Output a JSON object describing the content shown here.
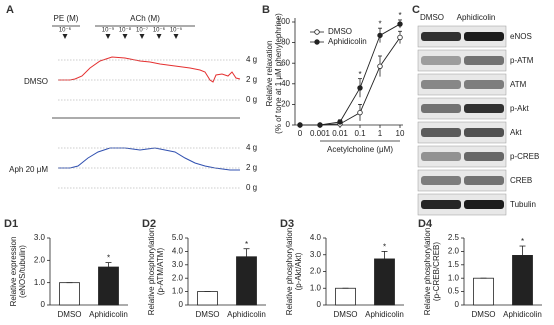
{
  "panel_a": {
    "label": "A",
    "pe_label": "PE (M)",
    "pe_doses": [
      "10⁻⁶"
    ],
    "ach_label": "ACh (M)",
    "ach_doses": [
      "10⁻⁹",
      "10⁻⁸",
      "10⁻⁷",
      "10⁻⁶",
      "10⁻⁵"
    ],
    "rows": [
      {
        "label": "DMSO",
        "scale": [
          "4 g",
          "2 g",
          "0 g"
        ]
      },
      {
        "label": "Aph 20 μM",
        "scale": [
          "4 g",
          "2 g",
          "0 g"
        ]
      }
    ]
  },
  "panel_c": {
    "label": "C",
    "columns": [
      "DMSO",
      "Aphidicolin"
    ],
    "rows": [
      "eNOS",
      "p-ATM",
      "ATM",
      "p-Akt",
      "Akt",
      "p-CREB",
      "CREB",
      "Tubulin"
    ]
  },
  "chart_data": [
    {
      "type": "line",
      "panel": "B",
      "ylabel": [
        "Relative relaxation",
        "(% of tone at 1 μM phenylephrine)"
      ],
      "xlabel": "Acetylcholine (μM)",
      "categories": [
        "0",
        "0.001",
        "0.01",
        "0.1",
        "1",
        "10"
      ],
      "ylim": [
        0,
        100
      ],
      "yticks": [
        0,
        20,
        40,
        60,
        80,
        100
      ],
      "significance": [
        null,
        null,
        null,
        "*",
        "*",
        "*"
      ],
      "series": [
        {
          "name": "DMSO",
          "color": "#ffffff",
          "values": [
            0,
            0,
            1,
            12,
            57,
            85
          ],
          "errors": [
            0,
            0,
            2,
            8,
            10,
            6
          ]
        },
        {
          "name": "Aphidicolin",
          "color": "#222222",
          "values": [
            0,
            0,
            3,
            36,
            87,
            98
          ],
          "errors": [
            0,
            0,
            2,
            9,
            7,
            4
          ]
        }
      ]
    },
    {
      "type": "bar",
      "panel": "D1",
      "ylabel": [
        "Relative expression",
        "(eNOS/tubulin)"
      ],
      "categories": [
        "DMSO",
        "Aphidicolin"
      ],
      "colors": [
        "#ffffff",
        "#222222"
      ],
      "values": [
        1.0,
        1.7
      ],
      "errors": [
        0,
        0.2
      ],
      "significance": [
        null,
        "*"
      ],
      "ylim": [
        0,
        3
      ],
      "yticks": [
        0,
        {
          "value": 1,
          "label": "1.0"
        },
        {
          "value": 2,
          "label": "2.0"
        },
        {
          "value": 3,
          "label": "3.0"
        }
      ]
    },
    {
      "type": "bar",
      "panel": "D2",
      "ylabel": [
        "Relative phosphorylation",
        "(p-ATM/ATM)"
      ],
      "categories": [
        "DMSO",
        "Aphidicolin"
      ],
      "colors": [
        "#ffffff",
        "#222222"
      ],
      "values": [
        1.0,
        3.6
      ],
      "errors": [
        0,
        0.6
      ],
      "significance": [
        null,
        "*"
      ],
      "ylim": [
        0,
        5
      ],
      "yticks": [
        0,
        {
          "value": 1,
          "label": "1.0"
        },
        {
          "value": 2,
          "label": "2.0"
        },
        {
          "value": 3,
          "label": "3.0"
        },
        {
          "value": 4,
          "label": "4.0"
        },
        {
          "value": 5,
          "label": "5.0"
        }
      ]
    },
    {
      "type": "bar",
      "panel": "D3",
      "ylabel": [
        "Relative phosphorylation",
        "(p-Akt/Akt)"
      ],
      "categories": [
        "DMSO",
        "Aphidicolin"
      ],
      "colors": [
        "#ffffff",
        "#222222"
      ],
      "values": [
        1.0,
        2.75
      ],
      "errors": [
        0,
        0.45
      ],
      "significance": [
        null,
        "*"
      ],
      "ylim": [
        0,
        4
      ],
      "yticks": [
        0,
        {
          "value": 1,
          "label": "1.0"
        },
        {
          "value": 2,
          "label": "2.0"
        },
        {
          "value": 3,
          "label": "3.0"
        },
        {
          "value": 4,
          "label": "4.0"
        }
      ]
    },
    {
      "type": "bar",
      "panel": "D4",
      "ylabel": [
        "Relative phosphorylation",
        "(p-CREB/CREB)"
      ],
      "categories": [
        "DMSO",
        "Aphidicolin"
      ],
      "colors": [
        "#ffffff",
        "#222222"
      ],
      "values": [
        1.0,
        1.85
      ],
      "errors": [
        0,
        0.35
      ],
      "significance": [
        null,
        "*"
      ],
      "ylim": [
        0,
        2.5
      ],
      "yticks": [
        0,
        {
          "value": 0.5,
          "label": "0.5"
        },
        {
          "value": 1,
          "label": "1.0"
        },
        {
          "value": 1.5,
          "label": "1.5"
        },
        {
          "value": 2,
          "label": "2.0"
        },
        {
          "value": 2.5,
          "label": "2.5"
        }
      ]
    }
  ]
}
